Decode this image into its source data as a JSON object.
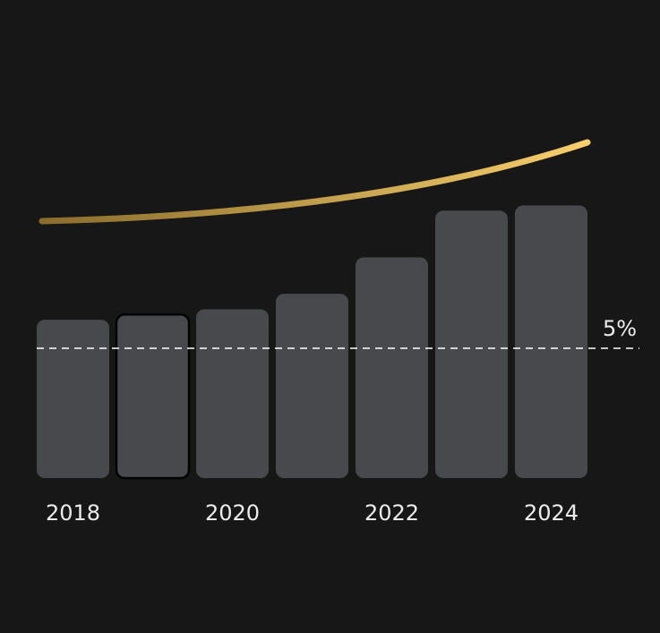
{
  "chart_data": {
    "type": "bar",
    "categories": [
      "2018",
      null,
      "2020",
      null,
      "2022",
      null,
      "2024"
    ],
    "values": [
      6.1,
      6.3,
      6.5,
      7.1,
      8.5,
      10.3,
      10.5
    ],
    "color": "#48494c",
    "highlight": 1,
    "reference_line": {
      "value": 5,
      "label": "5%"
    }
  }
}
